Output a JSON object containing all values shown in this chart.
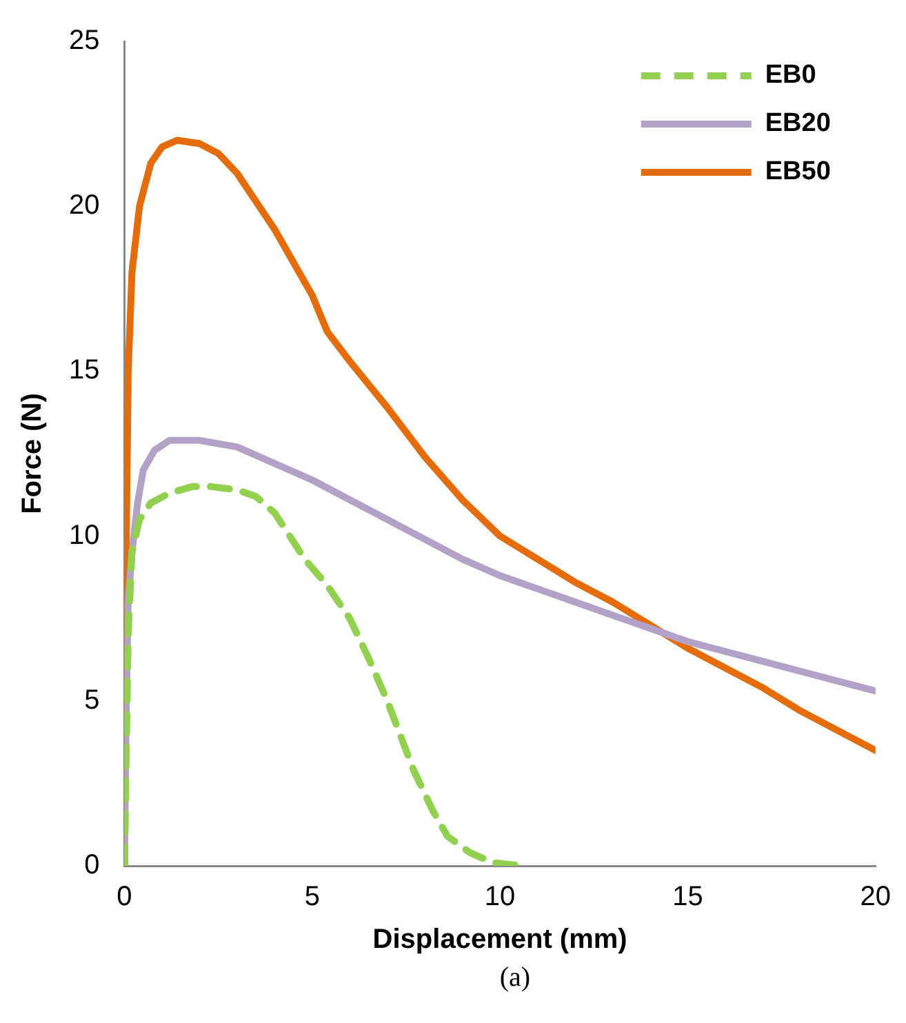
{
  "chart_data": {
    "type": "line",
    "xlabel": "Displacement (mm)",
    "ylabel": "Force (N)",
    "annotations": [
      "(a)"
    ],
    "xlim": [
      0,
      20
    ],
    "ylim": [
      0,
      25
    ],
    "xticks": [
      0,
      5,
      10,
      15,
      20
    ],
    "yticks": [
      0,
      5,
      10,
      15,
      20,
      25
    ],
    "grid": false,
    "legend": "top right",
    "marker": "none",
    "series": [
      {
        "name": "EB0",
        "color": "#92d050",
        "line_style": "dashed",
        "x": [
          0,
          0.1,
          0.2,
          0.4,
          0.7,
          1.2,
          1.8,
          2.3,
          3,
          3.5,
          4,
          4.4,
          4.8,
          5.4,
          6,
          6.5,
          7,
          7.7,
          8.2,
          8.6,
          9.2,
          9.8,
          10.55
        ],
        "values": [
          0,
          7,
          9.5,
          10.5,
          11,
          11.3,
          11.5,
          11.5,
          11.4,
          11.2,
          10.7,
          10,
          9.3,
          8.5,
          7.5,
          6.3,
          5,
          2.9,
          1.7,
          0.9,
          0.4,
          0.1,
          0
        ]
      },
      {
        "name": "EB20",
        "color": "#b3a2c7",
        "line_style": "solid",
        "x": [
          0,
          0.05,
          0.1,
          0.2,
          0.35,
          0.5,
          0.8,
          1.2,
          1.6,
          2,
          3,
          4,
          5,
          6,
          7,
          8,
          9,
          10,
          11,
          12,
          13,
          14,
          15,
          16,
          17,
          18,
          19,
          20
        ],
        "values": [
          0,
          5,
          8,
          9.5,
          11,
          12,
          12.6,
          12.9,
          12.9,
          12.9,
          12.7,
          12.2,
          11.7,
          11.1,
          10.5,
          9.9,
          9.3,
          8.8,
          8.4,
          8,
          7.6,
          7.2,
          6.8,
          6.5,
          6.2,
          5.9,
          5.6,
          5.3
        ]
      },
      {
        "name": "EB50",
        "color": "#e46c0a",
        "line_style": "solid",
        "x": [
          0,
          0.05,
          0.1,
          0.2,
          0.4,
          0.7,
          1,
          1.4,
          2,
          2.5,
          3,
          4,
          5,
          5.4,
          6,
          7,
          8,
          9,
          10,
          11,
          12,
          13,
          14,
          15,
          16,
          17,
          18,
          19,
          20
        ],
        "values": [
          0,
          10,
          15,
          18,
          20,
          21.3,
          21.8,
          22,
          21.9,
          21.6,
          21,
          19.3,
          17.3,
          16.2,
          15.3,
          13.9,
          12.4,
          11.1,
          10,
          9.3,
          8.6,
          8,
          7.3,
          6.6,
          6,
          5.4,
          4.7,
          4.1,
          3.5
        ]
      }
    ]
  }
}
